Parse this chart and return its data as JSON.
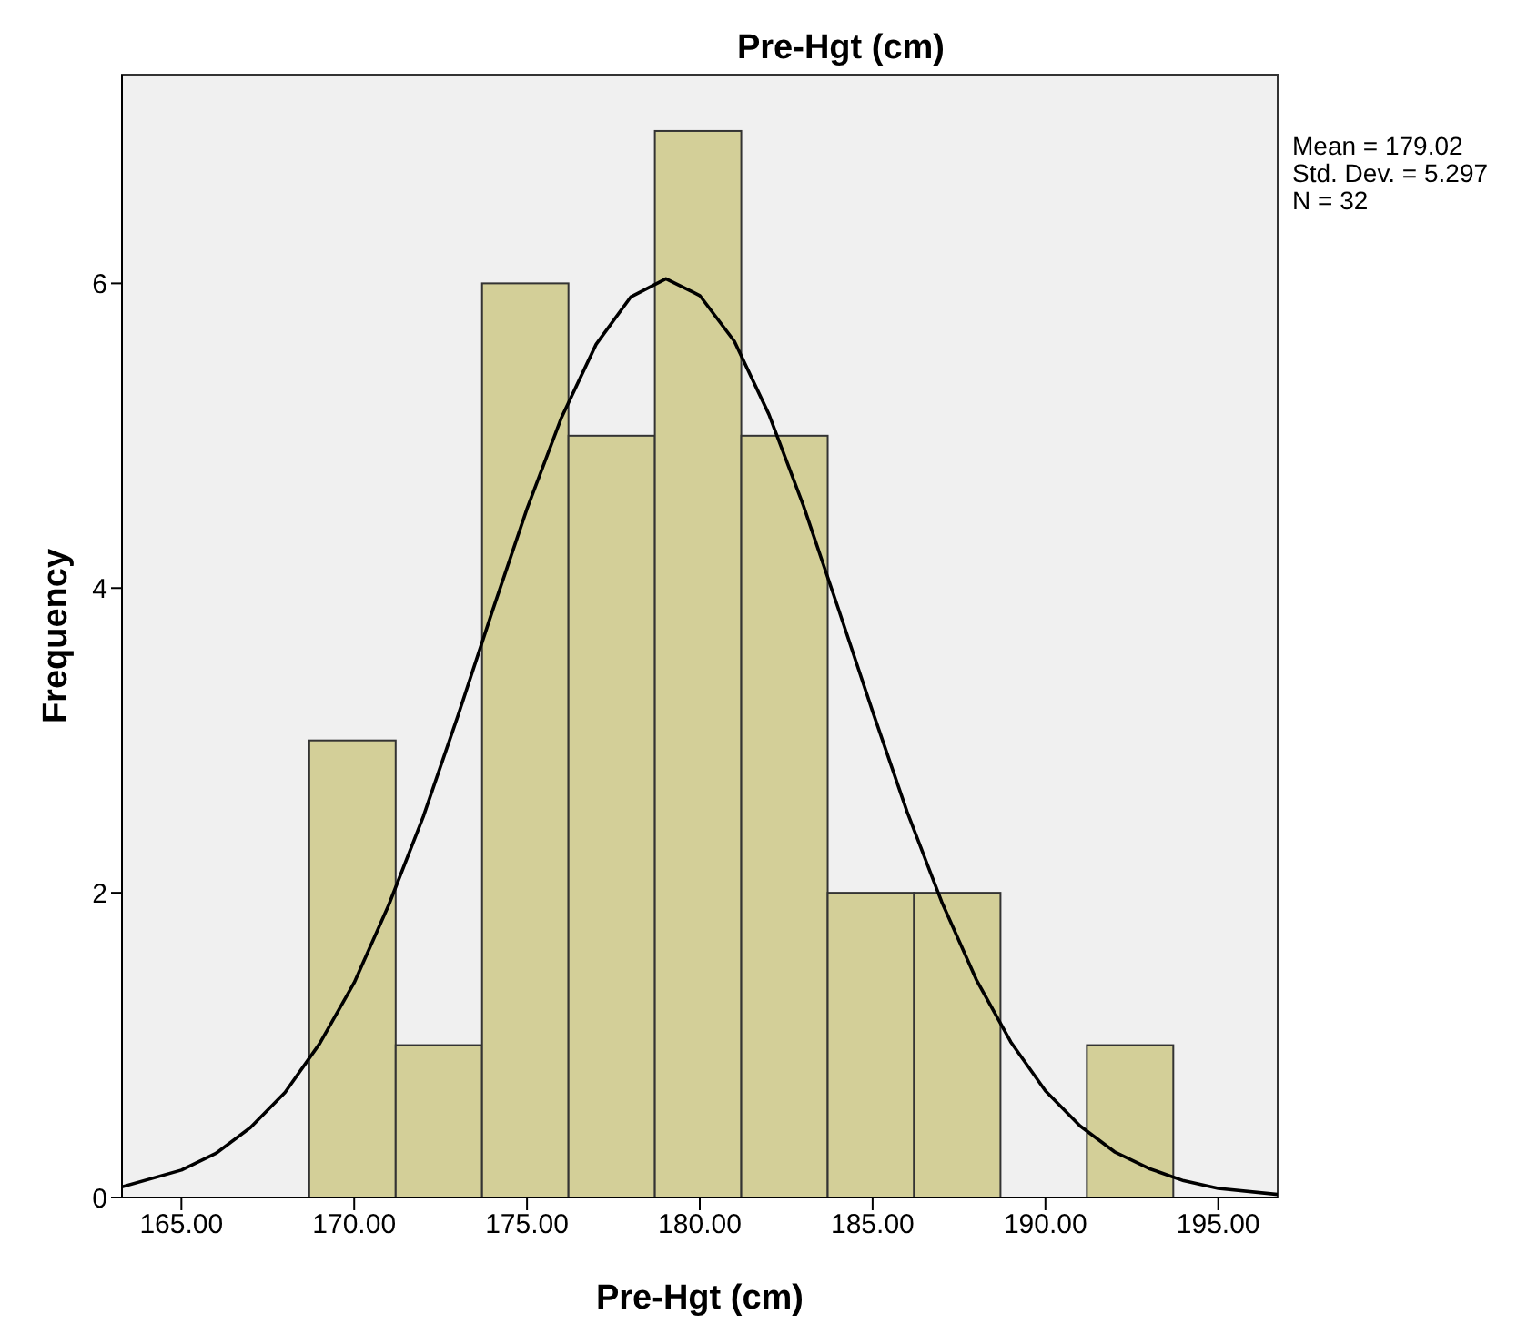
{
  "chart_data": {
    "type": "histogram",
    "title": "Pre-Hgt (cm)",
    "xlabel": "Pre-Hgt (cm)",
    "ylabel": "Frequency",
    "bins": [
      168.7,
      171.2,
      173.7,
      176.2,
      178.7,
      181.2,
      183.7,
      186.2,
      188.7,
      191.2,
      193.7
    ],
    "values": [
      3,
      1,
      6,
      5,
      7,
      5,
      2,
      2,
      0,
      1
    ],
    "color": "#d3cf98",
    "series": [
      {
        "type": "line",
        "color": "#000000",
        "marker": "none",
        "x": [
          163.28,
          165,
          166,
          167,
          168,
          169,
          170,
          171,
          172,
          173,
          174,
          175,
          176,
          177,
          178,
          179.02,
          180,
          181,
          182,
          183,
          184,
          185,
          186,
          187,
          188,
          189,
          190,
          191,
          192,
          193,
          194,
          195,
          196.72
        ],
        "values": [
          0.07,
          0.18,
          0.29,
          0.46,
          0.69,
          1.01,
          1.41,
          1.92,
          2.5,
          3.16,
          3.85,
          4.52,
          5.12,
          5.6,
          5.91,
          6.03,
          5.92,
          5.62,
          5.14,
          4.54,
          3.87,
          3.19,
          2.53,
          1.94,
          1.43,
          1.02,
          0.7,
          0.47,
          0.3,
          0.19,
          0.11,
          0.06,
          0.02
        ]
      }
    ],
    "xlim": [
      163.28,
      196.72
    ],
    "ylim": [
      0,
      7.37
    ],
    "xticks": [
      {
        "value": 165,
        "label": "165.00"
      },
      {
        "value": 170,
        "label": "170.00"
      },
      {
        "value": 175,
        "label": "175.00"
      },
      {
        "value": 180,
        "label": "180.00"
      },
      {
        "value": 185,
        "label": "185.00"
      },
      {
        "value": 190,
        "label": "190.00"
      },
      {
        "value": 195,
        "label": "195.00"
      }
    ],
    "yticks": [
      0,
      2,
      4,
      6
    ],
    "annotations": [
      "Mean = 179.02",
      "Std. Dev. = 5.297",
      "N = 32"
    ]
  }
}
